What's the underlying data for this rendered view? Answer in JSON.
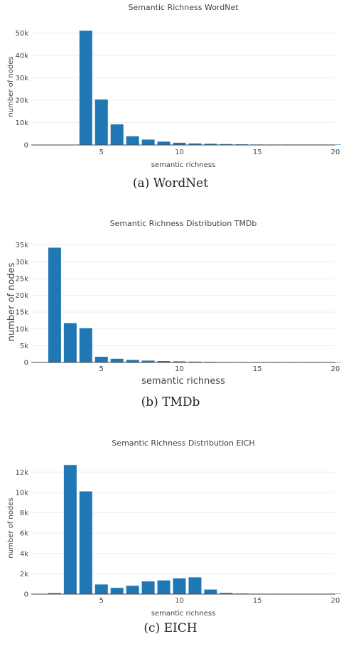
{
  "colors": {
    "bar": "#1f77b4"
  },
  "chart_data": [
    {
      "type": "bar",
      "title": "Semantic Richness WordNet",
      "xlabel": "semantic richness",
      "ylabel": "number of nodes",
      "caption": "(a) WordNet",
      "xlim": [
        0.5,
        20
      ],
      "ylim": [
        0,
        52000
      ],
      "xticks": [
        5,
        10,
        15,
        20
      ],
      "yticks": [
        0,
        10000,
        20000,
        30000,
        40000,
        50000
      ],
      "yticklabels": [
        "0",
        "10k",
        "20k",
        "30k",
        "40k",
        "50k"
      ],
      "x": [
        4,
        5,
        6,
        7,
        8,
        9,
        10,
        11,
        12,
        13,
        14,
        15,
        16,
        17,
        18,
        19,
        20
      ],
      "values": [
        51000,
        20300,
        9200,
        3900,
        2400,
        1500,
        1000,
        700,
        550,
        400,
        300,
        220,
        160,
        110,
        80,
        60,
        40
      ]
    },
    {
      "type": "bar",
      "title": "Semantic Richness Distribution TMDb",
      "xlabel": "semantic richness",
      "ylabel": "number of nodes",
      "caption": "(b) TMDb",
      "xlim": [
        0.5,
        20
      ],
      "ylim": [
        0,
        36000
      ],
      "xticks": [
        5,
        10,
        15,
        20
      ],
      "yticks": [
        0,
        5000,
        10000,
        15000,
        20000,
        25000,
        30000,
        35000
      ],
      "yticklabels": [
        "0",
        "5k",
        "10k",
        "15k",
        "20k",
        "25k",
        "30k",
        "35k"
      ],
      "x": [
        2,
        3,
        4,
        5,
        6,
        7,
        8,
        9,
        10,
        11,
        12,
        13,
        14,
        15,
        16,
        17,
        18,
        19,
        20
      ],
      "values": [
        34200,
        11700,
        10200,
        1700,
        1100,
        750,
        550,
        420,
        320,
        240,
        180,
        130,
        100,
        80,
        60,
        45,
        35,
        25,
        20
      ]
    },
    {
      "type": "bar",
      "title": "Semantic Richness Distribution EICH",
      "xlabel": "semantic richness",
      "ylabel": "number of nodes",
      "caption": "(c) EICH",
      "xlim": [
        0.5,
        20
      ],
      "ylim": [
        0,
        13000
      ],
      "xticks": [
        5,
        10,
        15,
        20
      ],
      "yticks": [
        0,
        2000,
        4000,
        6000,
        8000,
        10000,
        12000
      ],
      "yticklabels": [
        "0",
        "2k",
        "4k",
        "6k",
        "8k",
        "10k",
        "12k"
      ],
      "x": [
        2,
        3,
        4,
        5,
        6,
        7,
        8,
        9,
        10,
        11,
        12,
        13,
        14,
        15,
        16,
        17,
        18,
        19,
        20
      ],
      "values": [
        100,
        12700,
        10100,
        950,
        620,
        820,
        1250,
        1350,
        1550,
        1650,
        450,
        120,
        60,
        40,
        30,
        20,
        15,
        10,
        10
      ]
    }
  ]
}
